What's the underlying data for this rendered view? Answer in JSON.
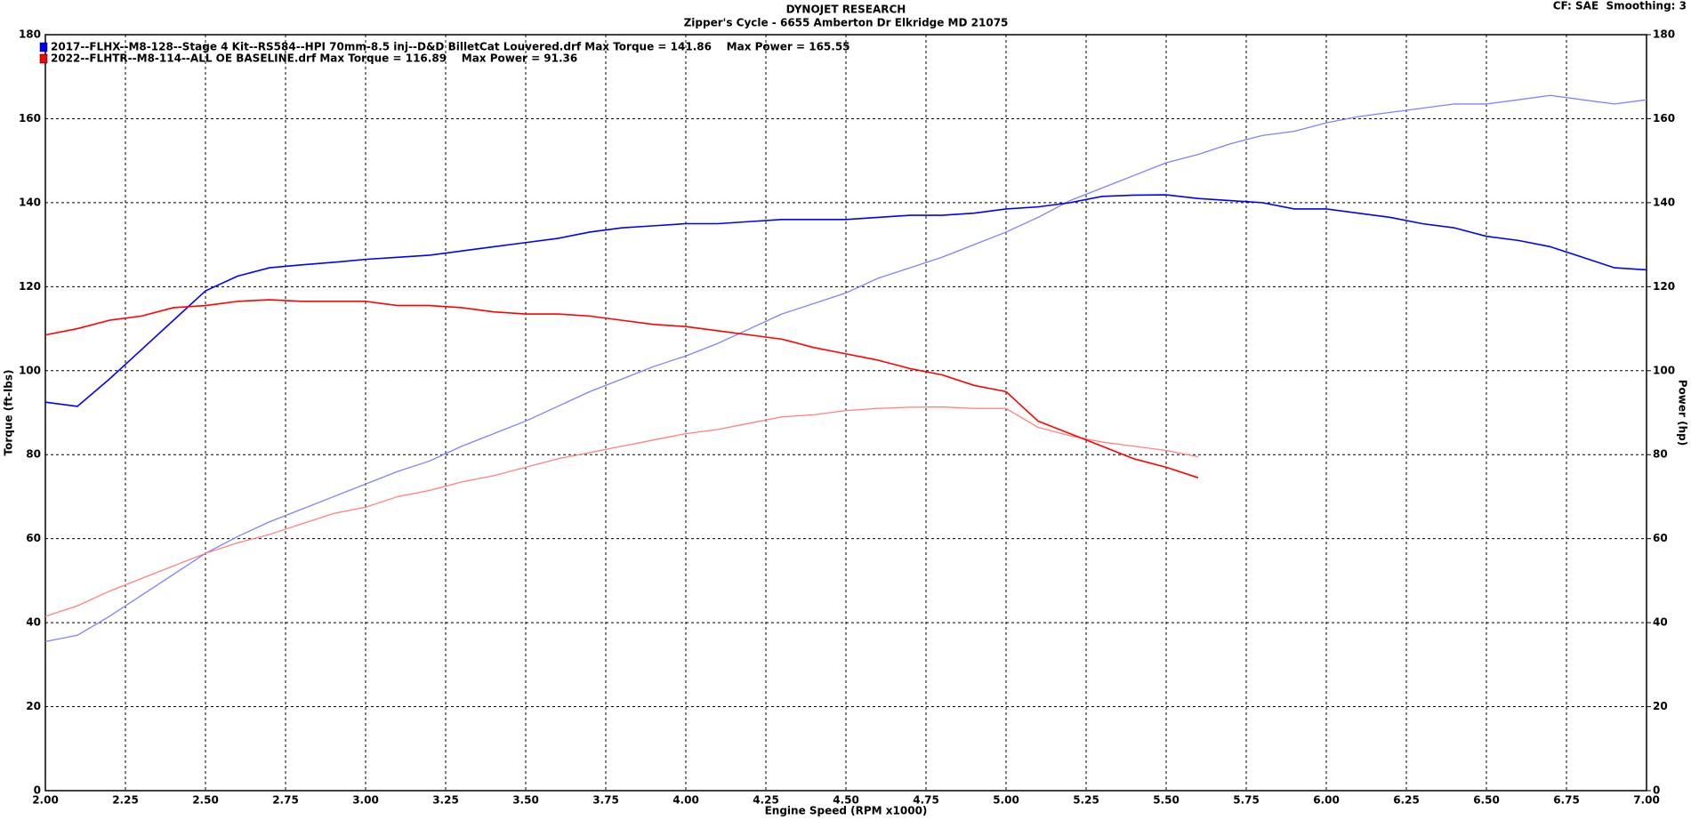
{
  "chart_data": {
    "type": "line",
    "title": "DYNOJET RESEARCH",
    "subtitle": "Zipper's Cycle - 6655 Amberton Dr Elkridge MD 21075",
    "corner_note": "CF: SAE  Smoothing: 3",
    "x_label": "Engine Speed (RPM x1000)",
    "y_label": "Torque (ft-lbs)",
    "y2_label": "Power (hp)",
    "x": [
      2.0,
      2.1,
      2.2,
      2.3,
      2.4,
      2.5,
      2.6,
      2.7,
      2.8,
      2.9,
      3.0,
      3.1,
      3.2,
      3.3,
      3.4,
      3.5,
      3.6,
      3.7,
      3.8,
      3.9,
      4.0,
      4.1,
      4.2,
      4.3,
      4.4,
      4.5,
      4.6,
      4.7,
      4.8,
      4.9,
      5.0,
      5.1,
      5.2,
      5.3,
      5.4,
      5.5,
      5.6,
      5.7,
      5.8,
      5.9,
      6.0,
      6.1,
      6.2,
      6.3,
      6.4,
      6.5,
      6.6,
      6.7,
      6.8,
      6.9,
      7.0
    ],
    "series": [
      {
        "name": "2017--FLHX--M8-128--Stage 4 Kit--RS584--HPI 70mm-8.5 inj--D&D BilletCat Louvered.drf Max Torque = 141.86    Max Power = 165.55",
        "color": "#0000ff",
        "power_color": "#8080ff",
        "torque": [
          92.5,
          91.5,
          98,
          105,
          112,
          119,
          122.5,
          124.5,
          125.2,
          125.8,
          126.5,
          127,
          127.5,
          128.5,
          129.5,
          130.5,
          131.5,
          133,
          134,
          134.5,
          135,
          135,
          135.5,
          136,
          136,
          136,
          136.5,
          137,
          137,
          137.5,
          138.5,
          139,
          140,
          141.5,
          141.8,
          141.86,
          141,
          140.5,
          140,
          138.5,
          138.5,
          137.5,
          136.5,
          135,
          134,
          132,
          131,
          129.5,
          127,
          124.5,
          124
        ],
        "power": [
          35.5,
          37,
          41.5,
          46.5,
          51.5,
          56.5,
          60.5,
          64,
          67,
          70,
          73,
          76,
          78.5,
          82,
          85,
          88,
          91.5,
          95,
          98,
          101,
          103.5,
          106.5,
          110,
          113.5,
          116,
          118.5,
          122,
          124.5,
          127,
          130,
          133,
          136.5,
          140.5,
          143.5,
          146.5,
          149.5,
          151.5,
          154,
          156,
          157,
          159,
          160.5,
          161.5,
          162.5,
          163.5,
          163.5,
          164.5,
          165.55,
          164.5,
          163.5,
          164.5
        ]
      },
      {
        "name": "2022--FLHTR--M8-114--ALL OE BASELINE.drf Max Torque = 116.89    Max Power = 91.36",
        "color": "#ff0000",
        "power_color": "#ff8080",
        "torque": [
          108.5,
          110,
          112,
          113,
          115,
          115.5,
          116.5,
          116.89,
          116.5,
          116.5,
          116.5,
          115.5,
          115.5,
          115,
          114,
          113.5,
          113.5,
          113,
          112,
          111,
          110.5,
          109.5,
          108.5,
          107.5,
          105.5,
          104,
          102.5,
          100.5,
          99,
          96.5,
          95,
          88,
          85,
          82,
          79,
          77,
          74.5,
          null,
          null,
          null,
          null,
          null,
          null,
          null,
          null,
          null,
          null,
          null,
          null,
          null,
          null
        ],
        "power": [
          41.5,
          44,
          47.5,
          50.5,
          53.5,
          56.5,
          59,
          61,
          63.5,
          66,
          67.5,
          70,
          71.5,
          73.5,
          75,
          77,
          79,
          80.5,
          82,
          83.5,
          85,
          86,
          87.5,
          89,
          89.5,
          90.5,
          91,
          91.3,
          91.36,
          91,
          91,
          86.5,
          84.5,
          83,
          82,
          81,
          79.5,
          null,
          null,
          null,
          null,
          null,
          null,
          null,
          null,
          null,
          null,
          null,
          null,
          null,
          null
        ]
      }
    ],
    "xlim": [
      2,
      7
    ],
    "xticks": [
      {
        "value": 2,
        "label": "2.00"
      },
      {
        "value": 2.25,
        "label": "2.25"
      },
      {
        "value": 2.5,
        "label": "2.50"
      },
      {
        "value": 2.75,
        "label": "2.75"
      },
      {
        "value": 3,
        "label": "3.00"
      },
      {
        "value": 3.25,
        "label": "3.25"
      },
      {
        "value": 3.5,
        "label": "3.50"
      },
      {
        "value": 3.75,
        "label": "3.75"
      },
      {
        "value": 4,
        "label": "4.00"
      },
      {
        "value": 4.25,
        "label": "4.25"
      },
      {
        "value": 4.5,
        "label": "4.50"
      },
      {
        "value": 4.75,
        "label": "4.75"
      },
      {
        "value": 5,
        "label": "5.00"
      },
      {
        "value": 5.25,
        "label": "5.25"
      },
      {
        "value": 5.5,
        "label": "5.50"
      },
      {
        "value": 5.75,
        "label": "5.75"
      },
      {
        "value": 6,
        "label": "6.00"
      },
      {
        "value": 6.25,
        "label": "6.25"
      },
      {
        "value": 6.5,
        "label": "6.50"
      },
      {
        "value": 6.75,
        "label": "6.75"
      },
      {
        "value": 7,
        "label": "7.00"
      }
    ],
    "ylim": [
      0,
      180
    ],
    "yticks": [
      0,
      20,
      40,
      60,
      80,
      100,
      120,
      140,
      160,
      180
    ],
    "y2lim": [
      0,
      180
    ],
    "y2ticks": [
      0,
      20,
      40,
      60,
      80,
      100,
      120,
      140,
      160,
      180
    ],
    "grid": true
  }
}
